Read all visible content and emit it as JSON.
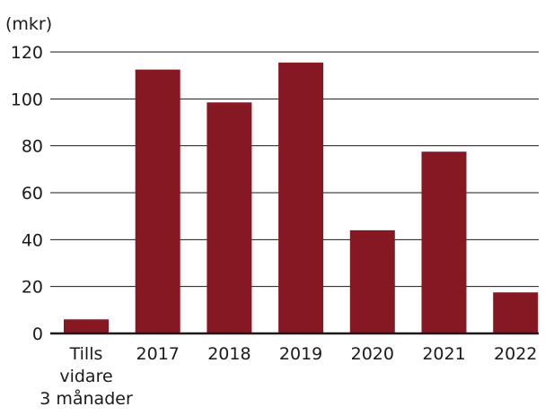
{
  "chart_data": {
    "type": "bar",
    "unit_label": "(mkr)",
    "categories": [
      [
        "Tills",
        "vidare",
        "3 månader"
      ],
      [
        "2017"
      ],
      [
        "2018"
      ],
      [
        "2019"
      ],
      [
        "2020"
      ],
      [
        "2021"
      ],
      [
        "2022"
      ]
    ],
    "values": [
      6,
      112.5,
      98.5,
      115.5,
      44,
      77.5,
      17.5
    ],
    "ylim": [
      0,
      120
    ],
    "yticks": [
      0,
      20,
      40,
      60,
      80,
      100,
      120
    ],
    "grid": true,
    "colors": {
      "bar": "#861823",
      "grid": "#1a1a1a",
      "text": "#1a1a1a"
    }
  }
}
